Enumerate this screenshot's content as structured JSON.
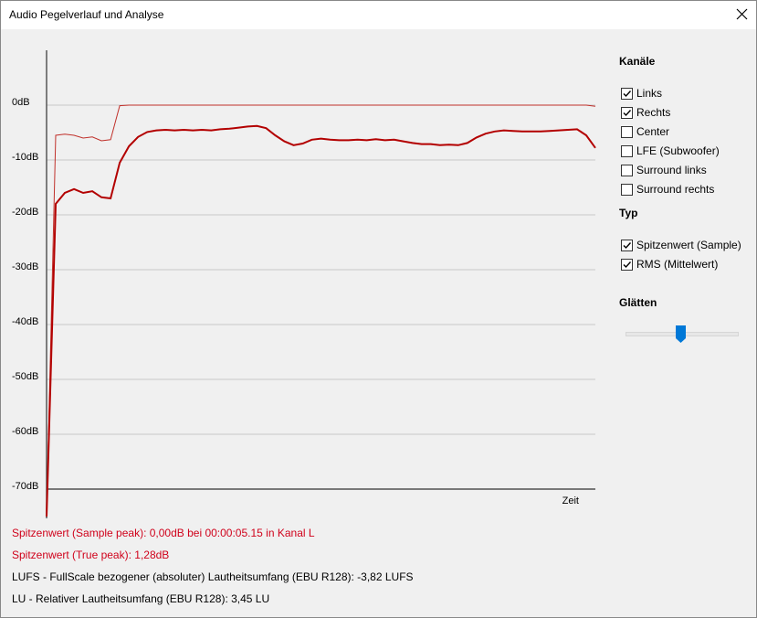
{
  "window": {
    "title": "Audio Pegelverlauf und Analyse"
  },
  "chart_data": {
    "type": "line",
    "ylim": [
      -75,
      10
    ],
    "yticks": [
      {
        "value": 0,
        "label": "0dB"
      },
      {
        "value": -10,
        "label": "-10dB"
      },
      {
        "value": -20,
        "label": "-20dB"
      },
      {
        "value": -30,
        "label": "-30dB"
      },
      {
        "value": -40,
        "label": "-40dB"
      },
      {
        "value": -50,
        "label": "-50dB"
      },
      {
        "value": -60,
        "label": "-60dB"
      },
      {
        "value": -70,
        "label": "-70dB"
      }
    ],
    "grid": true,
    "xlabel": "Zeit",
    "series": [
      {
        "color": "#c0302a",
        "width": 1,
        "values": [
          -75,
          -5.5,
          -5.3,
          -5.5,
          -6,
          -5.8,
          -6.5,
          -6.3,
          -0.1,
          0,
          0,
          0,
          0,
          0,
          0,
          0,
          0,
          0,
          0,
          0,
          0,
          0,
          0,
          0,
          0,
          0,
          0,
          0,
          0,
          0,
          0,
          0,
          0,
          0,
          0,
          0,
          0,
          0,
          0,
          0,
          0,
          0,
          0,
          0,
          0,
          0,
          0,
          0,
          0,
          0,
          0,
          0,
          0,
          0,
          0,
          0,
          0,
          0,
          0,
          0,
          -0.2
        ]
      },
      {
        "color": "#b30000",
        "width": 2,
        "values": [
          -75,
          -18,
          -16,
          -15.3,
          -16,
          -15.7,
          -16.8,
          -17,
          -10.5,
          -7.5,
          -5.8,
          -4.9,
          -4.6,
          -4.5,
          -4.6,
          -4.5,
          -4.6,
          -4.5,
          -4.6,
          -4.4,
          -4.3,
          -4.1,
          -3.9,
          -3.8,
          -4.2,
          -5.5,
          -6.6,
          -7.3,
          -7,
          -6.3,
          -6.1,
          -6.3,
          -6.4,
          -6.4,
          -6.3,
          -6.4,
          -6.2,
          -6.4,
          -6.3,
          -6.6,
          -6.9,
          -7.1,
          -7.1,
          -7.3,
          -7.2,
          -7.3,
          -6.9,
          -5.9,
          -5.2,
          -4.8,
          -4.6,
          -4.7,
          -4.8,
          -4.8,
          -4.8,
          -4.7,
          -4.6,
          -4.5,
          -4.4,
          -5.5,
          -7.8
        ]
      }
    ]
  },
  "info": [
    {
      "text": "Spitzenwert (Sample peak): 0,00dB bei 00:00:05.15 in Kanal L",
      "color": "#d0021b"
    },
    {
      "text": "Spitzenwert (True peak): 1,28dB",
      "color": "#d0021b"
    },
    {
      "text": "LUFS - FullScale bezogener (absoluter) Lautheitsumfang (EBU R128): -3,82 LUFS",
      "color": "#000000"
    },
    {
      "text": "LU - Relativer Lautheitsumfang (EBU R128): 3,45 LU",
      "color": "#000000"
    }
  ],
  "panel": {
    "channels": {
      "title": "Kanäle",
      "items": [
        {
          "label": "Links",
          "checked": true
        },
        {
          "label": "Rechts",
          "checked": true
        },
        {
          "label": "Center",
          "checked": false
        },
        {
          "label": "LFE (Subwoofer)",
          "checked": false
        },
        {
          "label": "Surround links",
          "checked": false
        },
        {
          "label": "Surround rechts",
          "checked": false
        }
      ]
    },
    "type": {
      "title": "Typ",
      "items": [
        {
          "label": "Spitzenwert (Sample)",
          "checked": true
        },
        {
          "label": "RMS (Mittelwert)",
          "checked": true
        }
      ]
    },
    "smoothing": {
      "title": "Glätten"
    }
  }
}
